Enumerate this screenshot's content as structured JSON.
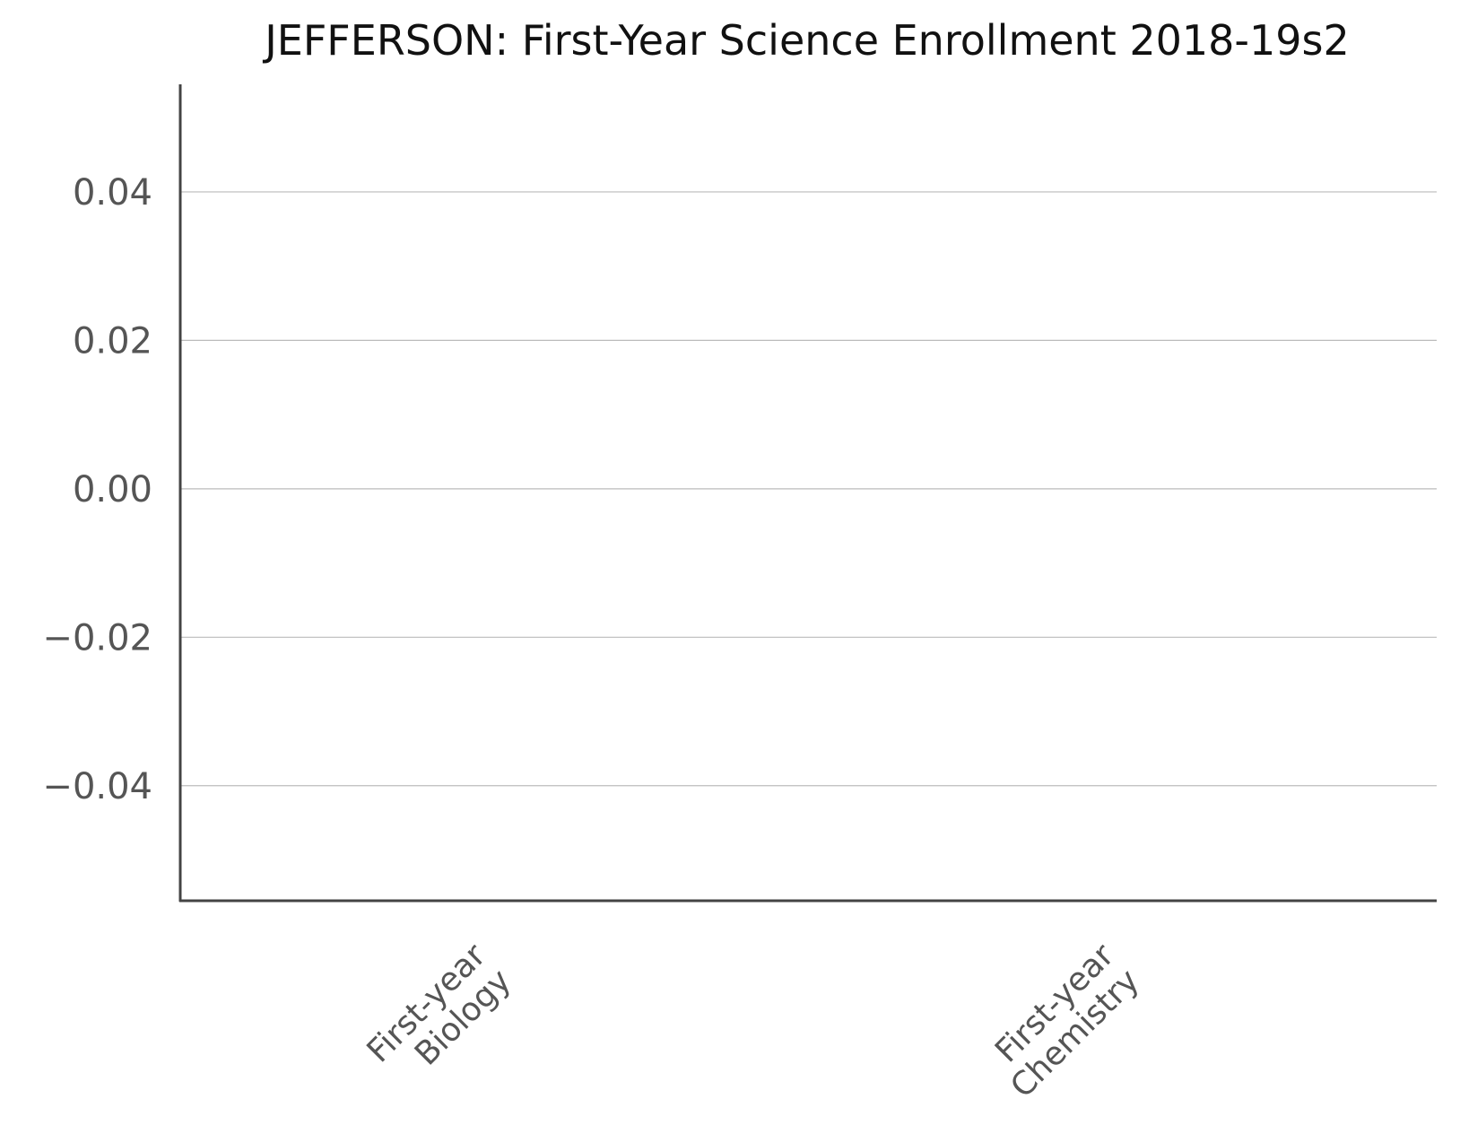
{
  "chart_data": {
    "type": "bar",
    "title": "JEFFERSON: First-Year Science Enrollment 2018-19s2",
    "xlabel": "",
    "ylabel": "",
    "categories": [
      [
        "First-year",
        "Biology"
      ],
      [
        "First-year",
        "Chemistry"
      ]
    ],
    "series": [
      {
        "values": [
          0,
          0
        ]
      }
    ],
    "yticks": [
      0.04,
      0.02,
      0.0,
      -0.02,
      -0.04
    ],
    "ytick_labels": [
      "0.04",
      "0.02",
      "0.00",
      "−0.02",
      "−0.04"
    ],
    "ylim": [
      -0.0555,
      0.0545
    ],
    "grid": "horizontal",
    "legend": "none",
    "colors": {
      "axis": "#444444",
      "grid": "#bbbbbb",
      "tick_text": "#555555",
      "title_text": "#111111",
      "bar": "#4c72b0"
    }
  }
}
